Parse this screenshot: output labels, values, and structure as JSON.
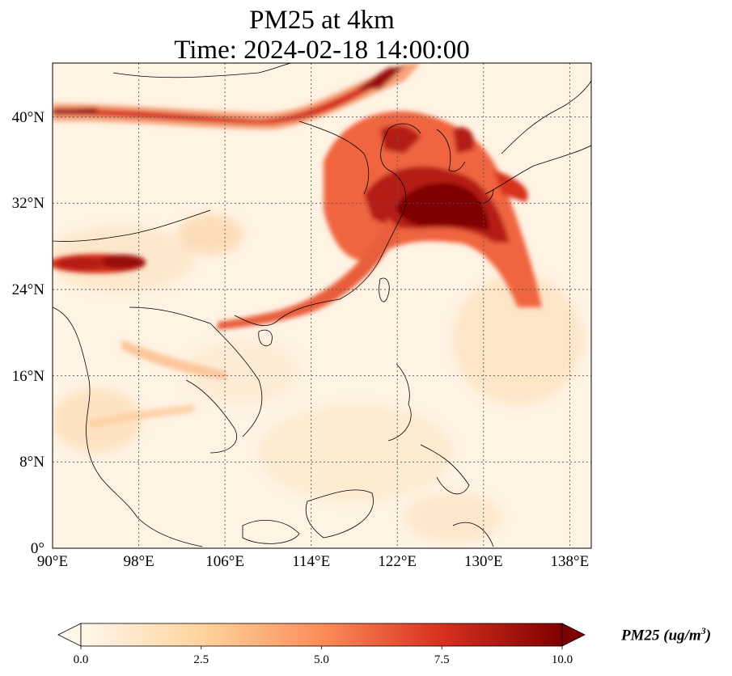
{
  "title": "PM25 at 4km",
  "subtitle": "Time: 2024-02-18 14:00:00",
  "map": {
    "lon_range": [
      90,
      140
    ],
    "lat_range": [
      0,
      45
    ],
    "lon_ticks": [
      "90°E",
      "98°E",
      "106°E",
      "114°E",
      "122°E",
      "130°E",
      "138°E"
    ],
    "lat_ticks": [
      "0°",
      "8°N",
      "16°N",
      "24°N",
      "32°N",
      "40°N"
    ],
    "gridlines": true,
    "projection": "PlateCarree",
    "colormap": "OrRd"
  },
  "colorbar": {
    "label_main": "PM25 (ug/m",
    "label_exp": "3",
    "label_close": ")",
    "ticks": [
      "0.0",
      "2.5",
      "5.0",
      "7.5",
      "10.0"
    ],
    "range": [
      0,
      10
    ],
    "extend": "both",
    "colors": [
      "#fff7ec",
      "#fdd49e",
      "#fc8d59",
      "#d7301f",
      "#7f0000"
    ]
  }
}
